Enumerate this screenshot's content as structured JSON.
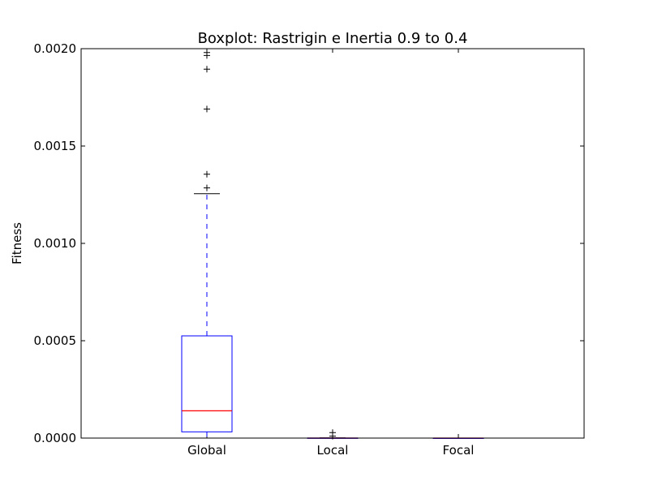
{
  "chart_data": {
    "type": "box",
    "title": "Boxplot: Rastrigin e Inertia 0.9 to 0.4",
    "xlabel": "",
    "ylabel": "Fitness",
    "ylim": [
      0,
      0.002
    ],
    "yticks": [
      "0.0000",
      "0.0005",
      "0.0010",
      "0.0015",
      "0.0020"
    ],
    "grid": false,
    "categories": [
      "Global",
      "Local",
      "Focal"
    ],
    "boxes": [
      {
        "category": "Global",
        "q1": 3.2e-05,
        "median": 0.00014,
        "q3": 0.000525,
        "whisker_low": 0.0,
        "whisker_high": 0.001255,
        "outliers": [
          0.001285,
          0.001355,
          0.00169,
          0.001895,
          0.001965,
          0.00198
        ]
      },
      {
        "category": "Local",
        "q1": 0.0,
        "median": 0.0,
        "q3": 5e-07,
        "whisker_low": 0.0,
        "whisker_high": 1e-06,
        "outliers": [
          1e-05,
          2.8e-05
        ]
      },
      {
        "category": "Focal",
        "q1": 0.0,
        "median": 0.0,
        "q3": 0.0,
        "whisker_low": 0.0,
        "whisker_high": 0.0,
        "outliers": []
      }
    ],
    "colors": {
      "box": "#0000ff",
      "median": "#ff0000",
      "whisker": "#0000ff",
      "cap": "#000000",
      "flier": "#000000"
    }
  }
}
